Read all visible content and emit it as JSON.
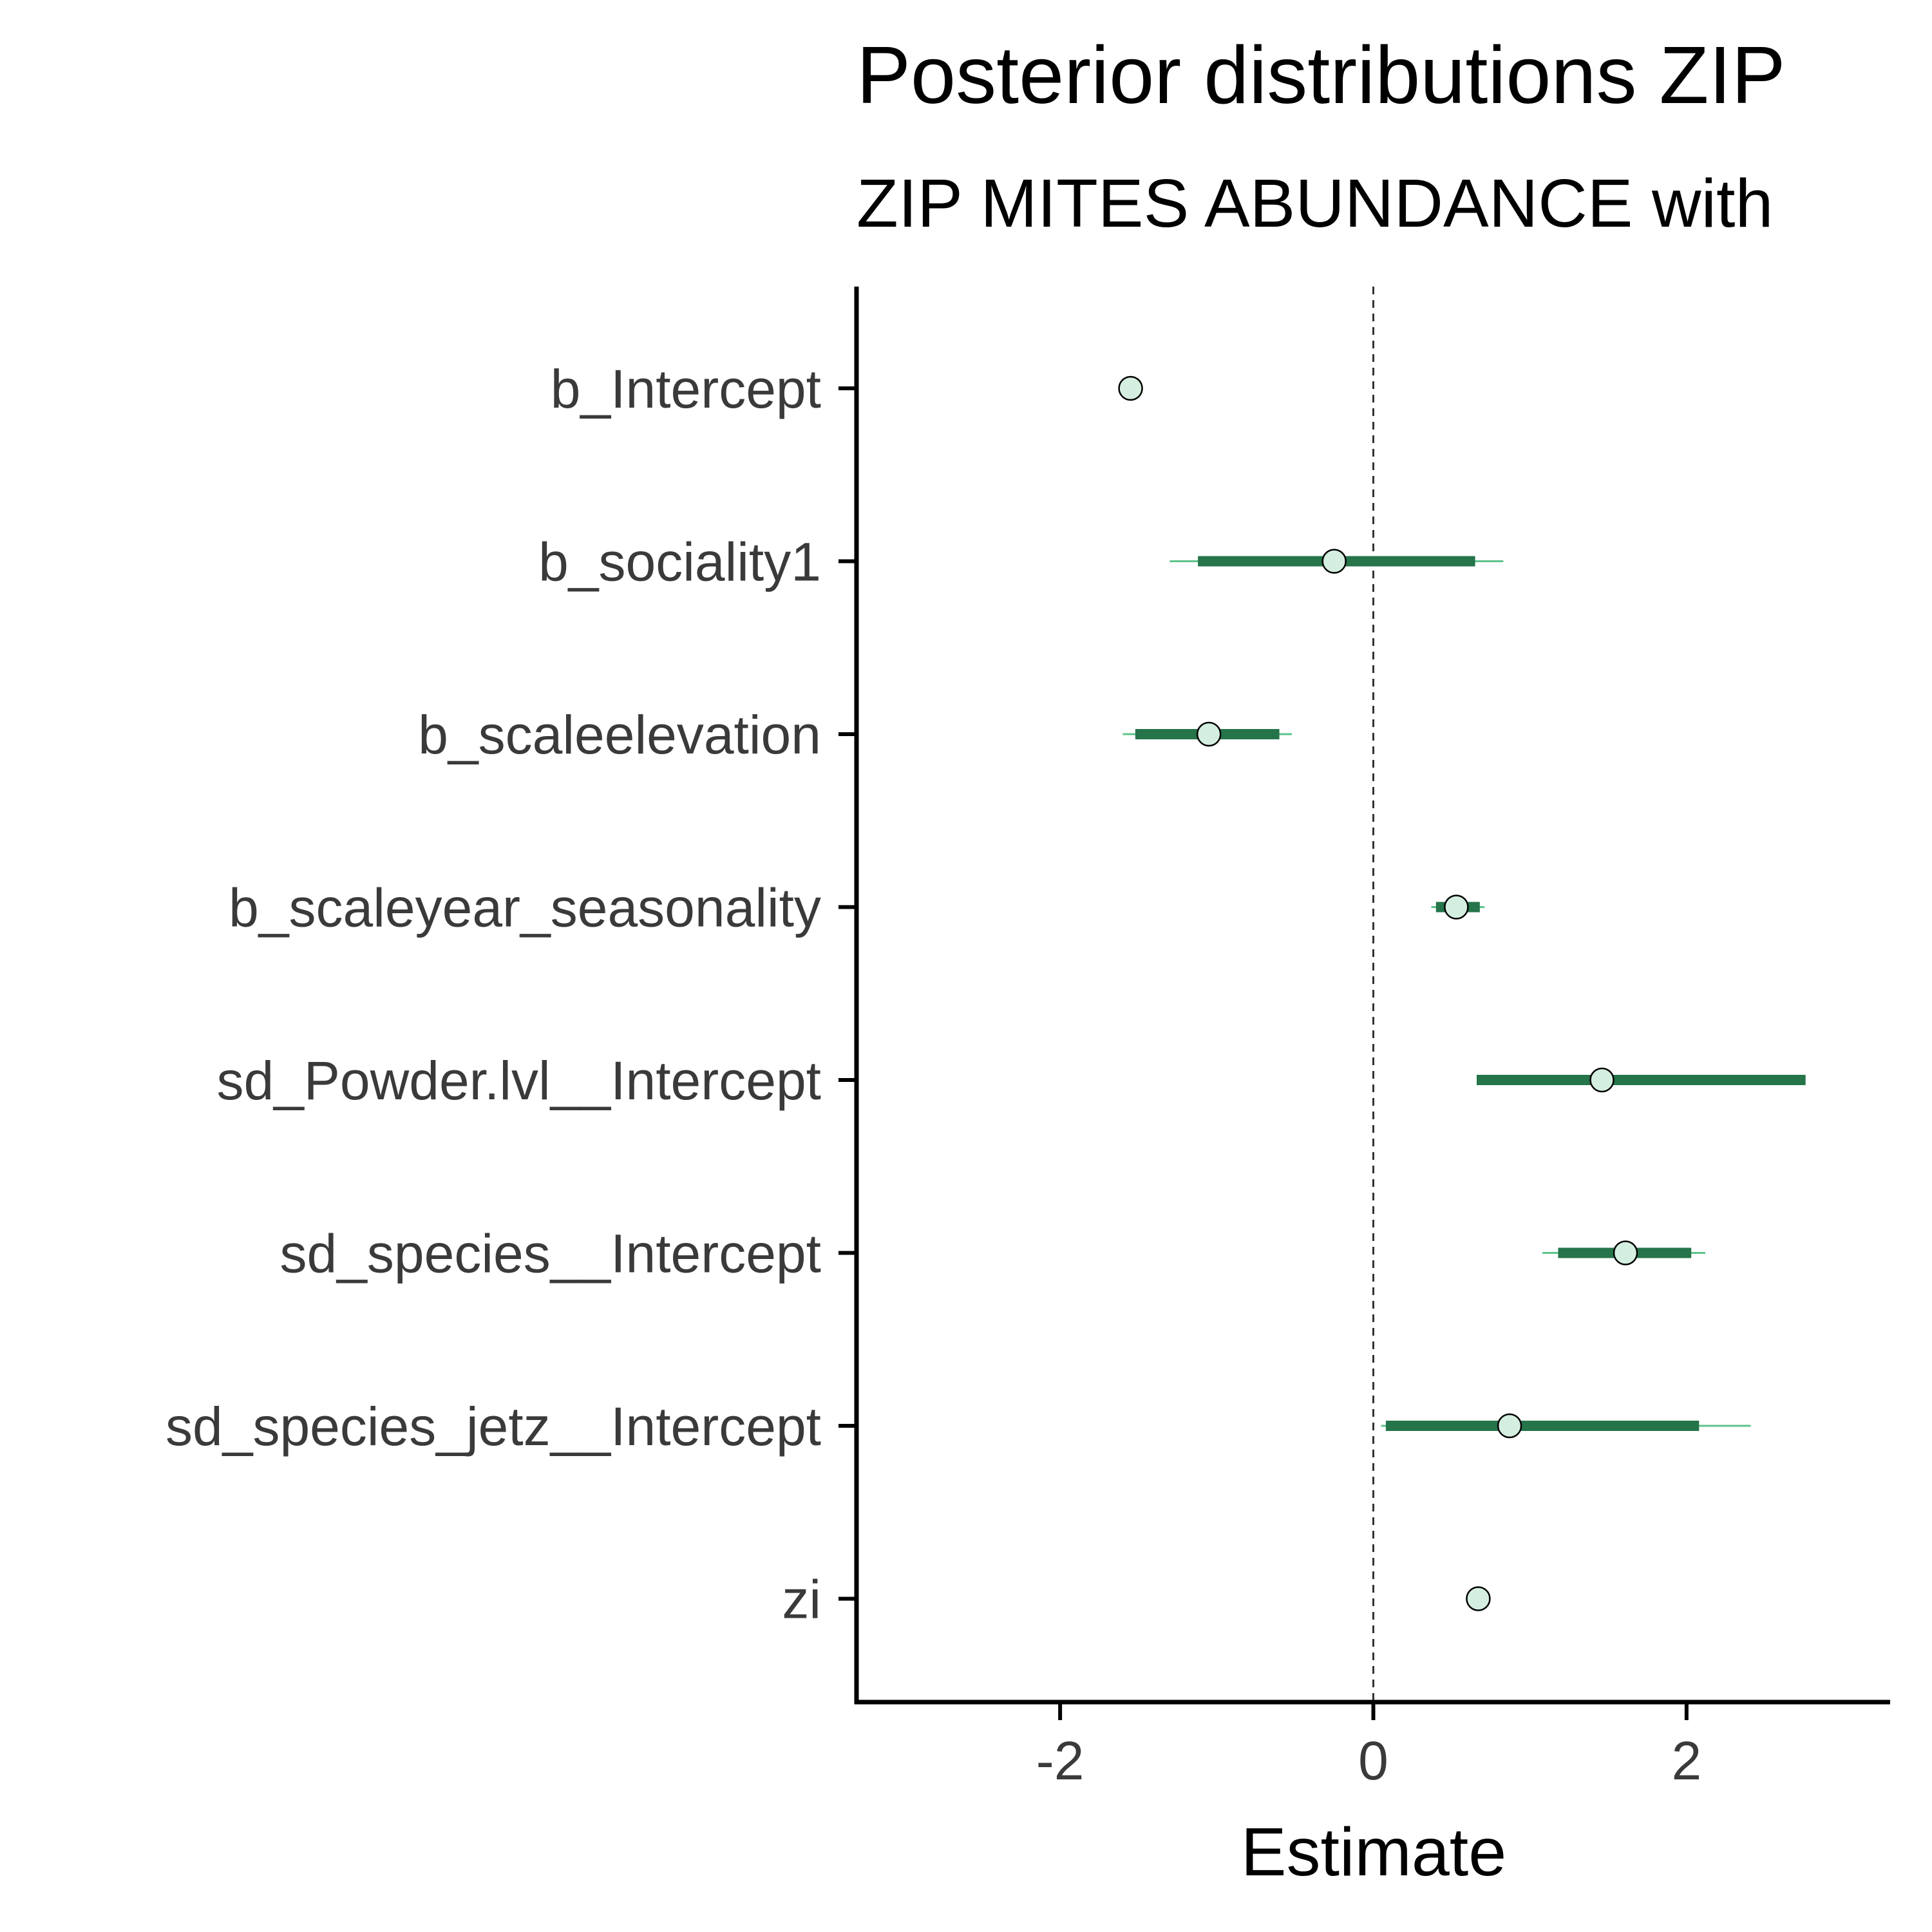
{
  "chart_data": {
    "type": "scatter",
    "title": "Posterior distributions ZIP",
    "subtitle": "ZIP MITES ABUNDANCE with",
    "xlabel": "Estimate",
    "ylabel": "",
    "xlim": [
      -3.3,
      3.3
    ],
    "xticks": [
      -2,
      0,
      2
    ],
    "xtick_labels": [
      "-2",
      "0",
      "2"
    ],
    "reference_line": 0,
    "grid": false,
    "colors": {
      "inner_interval": "#25744a",
      "outer_interval": "#5cc48a",
      "point_fill": "#d4efdf",
      "point_stroke": "#000000"
    },
    "parameters": [
      {
        "label": "b_Intercept",
        "estimate": -1.55,
        "inner": null,
        "outer": null
      },
      {
        "label": "b_sociality1",
        "estimate": -0.25,
        "inner": [
          -1.12,
          0.65
        ],
        "outer": [
          -1.3,
          0.83
        ]
      },
      {
        "label": "b_scaleelevation",
        "estimate": -1.05,
        "inner": [
          -1.52,
          -0.6
        ],
        "outer": [
          -1.6,
          -0.52
        ]
      },
      {
        "label": "b_scaleyear_seasonality",
        "estimate": 0.53,
        "inner": [
          0.4,
          0.68
        ],
        "outer": [
          0.37,
          0.71
        ]
      },
      {
        "label": "sd_Powder.lvl__Intercept",
        "estimate": 1.46,
        "inner": [
          0.66,
          2.76
        ],
        "outer": [
          0.66,
          2.76
        ]
      },
      {
        "label": "sd_species__Intercept",
        "estimate": 1.61,
        "inner": [
          1.18,
          2.03
        ],
        "outer": [
          1.08,
          2.12
        ]
      },
      {
        "label": "sd_species_jetz__Intercept",
        "estimate": 0.87,
        "inner": [
          0.08,
          2.08
        ],
        "outer": [
          0.05,
          2.41
        ]
      },
      {
        "label": "zi",
        "estimate": 0.67,
        "inner": null,
        "outer": null
      }
    ]
  }
}
